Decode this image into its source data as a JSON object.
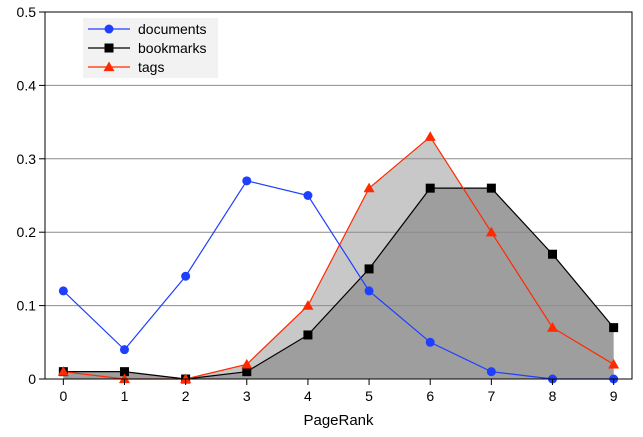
{
  "chart_data": {
    "type": "line",
    "xlabel": "PageRank",
    "ylabel": "",
    "x": [
      0,
      1,
      2,
      3,
      4,
      5,
      6,
      7,
      8,
      9
    ],
    "x_tick_labels": [
      "0",
      "1",
      "2",
      "3",
      "4",
      "5",
      "6",
      "7",
      "8",
      "9"
    ],
    "xlim": [
      -0.3,
      9.3
    ],
    "ylim": [
      0,
      0.5
    ],
    "y_ticks": [
      0,
      0.1,
      0.2,
      0.3,
      0.4,
      0.5
    ],
    "y_tick_labels": [
      "0",
      "0.1",
      "0.2",
      "0.3",
      "0.4",
      "0.5"
    ],
    "grid": "horizontal",
    "legend_position": "top-left",
    "series": [
      {
        "name": "documents",
        "values": [
          0.12,
          0.04,
          0.14,
          0.27,
          0.25,
          0.12,
          0.05,
          0.01,
          0.0,
          0.0
        ],
        "color": "#1f3fff",
        "marker": "circle",
        "fill": "none"
      },
      {
        "name": "bookmarks",
        "values": [
          0.01,
          0.01,
          0.0,
          0.01,
          0.06,
          0.15,
          0.26,
          0.26,
          0.17,
          0.07
        ],
        "color": "#000000",
        "marker": "square",
        "fill": "#9e9e9e"
      },
      {
        "name": "tags",
        "values": [
          0.01,
          0.0,
          0.0,
          0.02,
          0.1,
          0.26,
          0.33,
          0.2,
          0.07,
          0.02
        ],
        "color": "#ff2a00",
        "marker": "triangle",
        "fill": "#c8c8c8"
      }
    ]
  }
}
